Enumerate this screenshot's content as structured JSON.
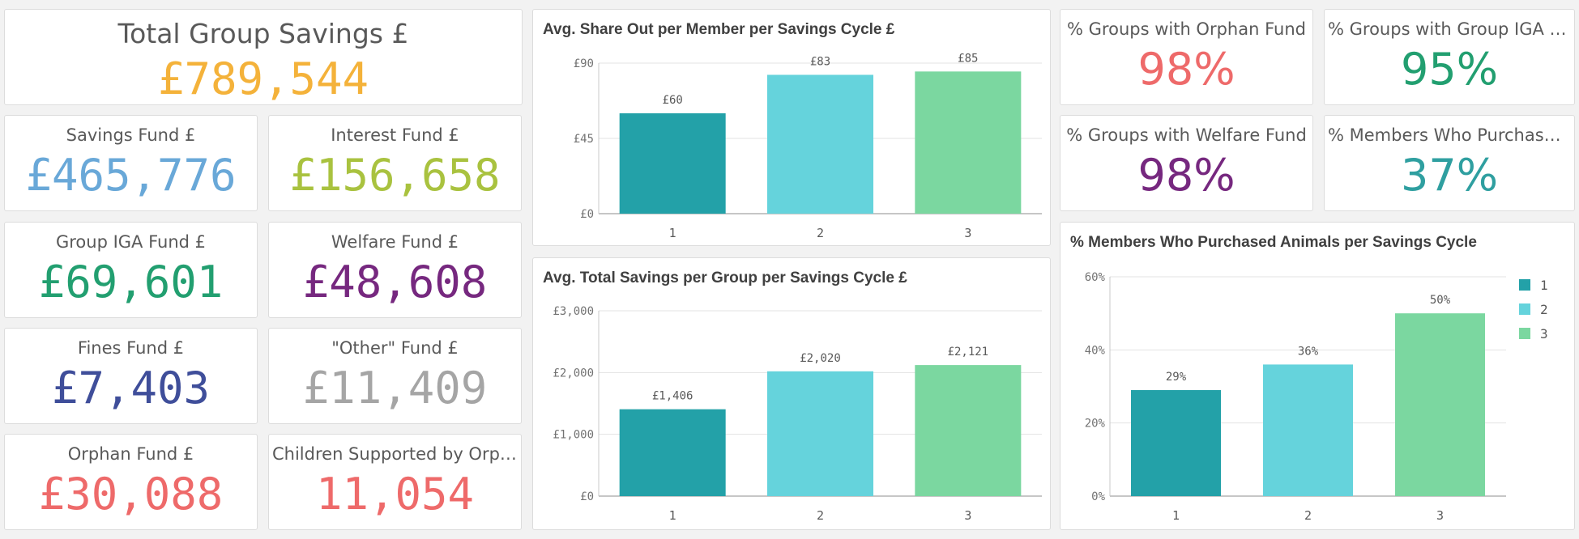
{
  "kpis": {
    "total_group_savings": {
      "label": "Total Group Savings £",
      "value": "£789,544",
      "color": "#f4b23a"
    },
    "savings_fund": {
      "label": "Savings Fund £",
      "value": "£465,776",
      "color": "#69a8d8"
    },
    "interest_fund": {
      "label": "Interest Fund £",
      "value": "£156,658",
      "color": "#a9c23f"
    },
    "group_iga_fund": {
      "label": "Group IGA Fund £",
      "value": "£69,601",
      "color": "#229f70"
    },
    "welfare_fund": {
      "label": "Welfare Fund £",
      "value": "£48,608",
      "color": "#76287f"
    },
    "fines_fund": {
      "label": "Fines Fund £",
      "value": "£7,403",
      "color": "#3f4e9a"
    },
    "other_fund": {
      "label": "\"Other\" Fund £",
      "value": "£11,409",
      "color": "#a5a5a5"
    },
    "orphan_fund": {
      "label": "Orphan Fund £",
      "value": "£30,088",
      "color": "#ee6a6a"
    },
    "children_supported": {
      "label": "Children Supported by Orpha...",
      "value": "11,054",
      "color": "#ee6a6a"
    },
    "pct_orphan_fund": {
      "label": "% Groups with Orphan Fund",
      "value": "98%",
      "color": "#ee6a6a"
    },
    "pct_iga_fund": {
      "label": "% Groups with Group IGA Fund",
      "value": "95%",
      "color": "#229f70"
    },
    "pct_welfare_fund": {
      "label": "% Groups with Welfare Fund",
      "value": "98%",
      "color": "#76287f"
    },
    "pct_members_animals": {
      "label": "% Members Who Purchased A...",
      "value": "37%",
      "color": "#2f9fa0"
    }
  },
  "chart_data": [
    {
      "type": "bar",
      "title": "Avg. Share Out per Member per Savings Cycle £",
      "categories": [
        "1",
        "2",
        "3"
      ],
      "values": [
        60,
        83,
        85
      ],
      "value_labels": [
        "£60",
        "£83",
        "£85"
      ],
      "ylim": [
        0,
        90
      ],
      "yticks": [
        0,
        45,
        90
      ],
      "ytick_labels": [
        "£0",
        "£45",
        "£90"
      ],
      "colors": [
        "#23a1a8",
        "#65d3dc",
        "#7bd7a0"
      ],
      "grid": true
    },
    {
      "type": "bar",
      "title": "Avg. Total Savings per Group per Savings Cycle £",
      "categories": [
        "1",
        "2",
        "3"
      ],
      "values": [
        1406,
        2020,
        2121
      ],
      "value_labels": [
        "£1,406",
        "£2,020",
        "£2,121"
      ],
      "ylim": [
        0,
        3000
      ],
      "yticks": [
        0,
        1000,
        2000,
        3000
      ],
      "ytick_labels": [
        "£0",
        "£1,000",
        "£2,000",
        "£3,000"
      ],
      "colors": [
        "#23a1a8",
        "#65d3dc",
        "#7bd7a0"
      ],
      "grid": true
    },
    {
      "type": "bar",
      "title": "% Members Who Purchased Animals per Savings Cycle",
      "categories": [
        "1",
        "2",
        "3"
      ],
      "values": [
        29,
        36,
        50
      ],
      "value_labels": [
        "29%",
        "36%",
        "50%"
      ],
      "ylim": [
        0,
        60
      ],
      "yticks": [
        0,
        20,
        40,
        60
      ],
      "ytick_labels": [
        "0%",
        "20%",
        "40%",
        "60%"
      ],
      "colors": [
        "#23a1a8",
        "#65d3dc",
        "#7bd7a0"
      ],
      "grid": true,
      "legend": {
        "placement": "right",
        "entries": [
          "1",
          "2",
          "3"
        ]
      }
    }
  ]
}
